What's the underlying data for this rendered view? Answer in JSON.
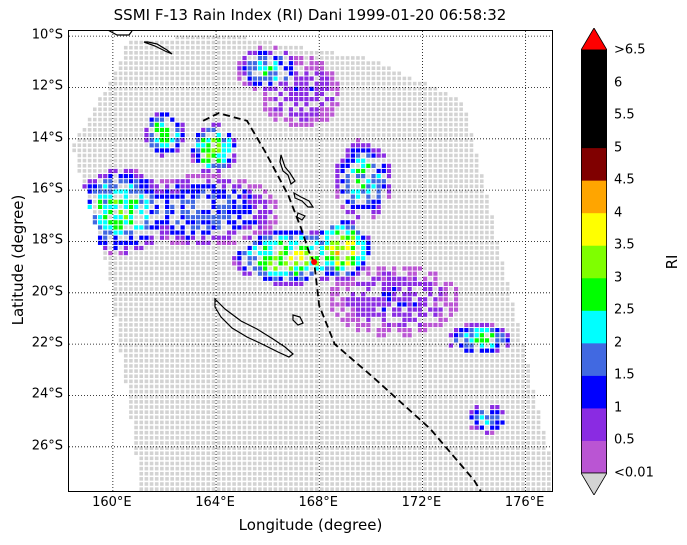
{
  "figure": {
    "title": "SSMI F-13 Rain Index (RI) Dani 1999-01-20 06:58:32",
    "xlabel": "Longitude (degree)",
    "ylabel": "Latitude (degree)",
    "colorbar_label": "RI"
  },
  "chart_data": {
    "type": "scatter",
    "projection": "lat-lon swath map",
    "xlim_lon_deg_e": [
      158.3,
      177.1
    ],
    "ylim_lat_deg": [
      -27.8,
      -9.8
    ],
    "x_tick_labels": [
      "160°E",
      "164°E",
      "168°E",
      "172°E",
      "176°E"
    ],
    "x_tick_values": [
      160,
      164,
      168,
      172,
      176
    ],
    "y_tick_labels": [
      "10°S",
      "12°S",
      "14°S",
      "16°S",
      "18°S",
      "20°S",
      "22°S",
      "24°S",
      "26°S"
    ],
    "y_tick_values": [
      -10,
      -12,
      -14,
      -16,
      -18,
      -20,
      -22,
      -24,
      -26
    ],
    "grid": "dotted",
    "no_rain_color": "#d3d3d3",
    "colorbar": {
      "tick_labels": [
        "<0.01",
        "0.5",
        "1",
        "1.5",
        "2",
        "2.5",
        "3",
        "3.5",
        "4",
        "4.5",
        "5",
        "5.5",
        "6",
        ">6.5"
      ],
      "colors": [
        "#ba55d3",
        "#8a2be2",
        "#0000ff",
        "#4169e1",
        "#00ffff",
        "#00ff00",
        "#7fff00",
        "#ffff00",
        "#ffa500",
        "#800000",
        "#000000",
        "#000000",
        "#000000"
      ],
      "under_color": "#d3d3d3",
      "over_color": "#ff0000"
    },
    "storm_center": {
      "lon": 167.8,
      "lat": -18.8,
      "marker_color": "#ff0000"
    },
    "track": [
      [
        163.5,
        -13.3
      ],
      [
        164.1,
        -13.0
      ],
      [
        165.2,
        -13.3
      ],
      [
        165.9,
        -14.5
      ],
      [
        166.8,
        -16.2
      ],
      [
        167.3,
        -17.5
      ],
      [
        167.6,
        -18.4
      ],
      [
        167.8,
        -18.8
      ],
      [
        168.0,
        -20.5
      ],
      [
        168.6,
        -22.0
      ],
      [
        170.1,
        -23.3
      ],
      [
        172.3,
        -25.3
      ],
      [
        174.0,
        -27.3
      ],
      [
        174.3,
        -27.8
      ]
    ],
    "rain_regions": [
      {
        "lon": 160.3,
        "lat": -16.8,
        "r_lon": 1.9,
        "r_lat": 1.7,
        "peak": 2.6
      },
      {
        "lon": 163.9,
        "lat": -14.4,
        "r_lon": 0.9,
        "r_lat": 1.0,
        "peak": 3.2
      },
      {
        "lon": 162.0,
        "lat": -13.8,
        "r_lon": 0.8,
        "r_lat": 0.9,
        "peak": 2.8
      },
      {
        "lon": 166.9,
        "lat": -18.6,
        "r_lon": 2.3,
        "r_lat": 1.1,
        "peak": 3.2
      },
      {
        "lon": 168.9,
        "lat": -18.3,
        "r_lon": 1.1,
        "r_lat": 1.2,
        "peak": 3.7
      },
      {
        "lon": 169.7,
        "lat": -15.6,
        "r_lon": 1.1,
        "r_lat": 1.6,
        "peak": 2.4
      },
      {
        "lon": 166.0,
        "lat": -11.3,
        "r_lon": 1.2,
        "r_lat": 0.9,
        "peak": 2.2
      },
      {
        "lon": 163.5,
        "lat": -16.8,
        "r_lon": 3.0,
        "r_lat": 1.4,
        "peak": 1.7
      },
      {
        "lon": 174.2,
        "lat": -21.8,
        "r_lon": 1.3,
        "r_lat": 0.6,
        "peak": 2.6
      },
      {
        "lon": 174.5,
        "lat": -24.9,
        "r_lon": 0.8,
        "r_lat": 0.6,
        "peak": 2.0
      },
      {
        "lon": 170.9,
        "lat": -20.3,
        "r_lon": 2.6,
        "r_lat": 1.4,
        "peak": 0.9
      },
      {
        "lon": 167.3,
        "lat": -12.2,
        "r_lon": 1.6,
        "r_lat": 1.4,
        "peak": 0.9
      }
    ]
  }
}
